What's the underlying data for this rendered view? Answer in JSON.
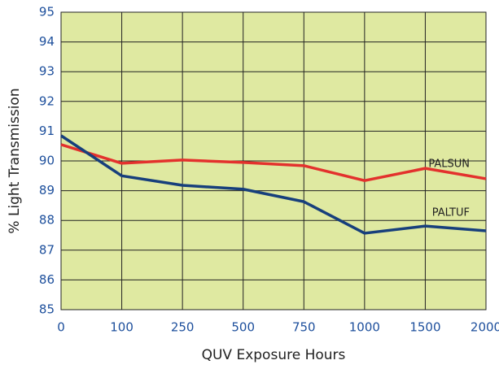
{
  "chart_data": {
    "type": "line",
    "xlabel": "QUV Exposure Hours",
    "ylabel": "% Light Transmission",
    "categories": [
      "0",
      "100",
      "250",
      "500",
      "750",
      "1000",
      "1500",
      "2000"
    ],
    "series": [
      {
        "name": "PALSUN",
        "color": "#e3312d",
        "values": [
          90.55,
          89.92,
          90.03,
          89.95,
          89.84,
          89.34,
          89.75,
          89.4
        ]
      },
      {
        "name": "PALTUF",
        "color": "#173f7c",
        "values": [
          90.85,
          89.5,
          89.18,
          89.05,
          88.63,
          87.57,
          87.81,
          87.65
        ]
      }
    ],
    "ylim": [
      85,
      95
    ],
    "yticks": [
      85,
      86,
      87,
      88,
      89,
      90,
      91,
      92,
      93,
      94,
      95
    ],
    "grid": true,
    "background": "#dfe9a1"
  }
}
